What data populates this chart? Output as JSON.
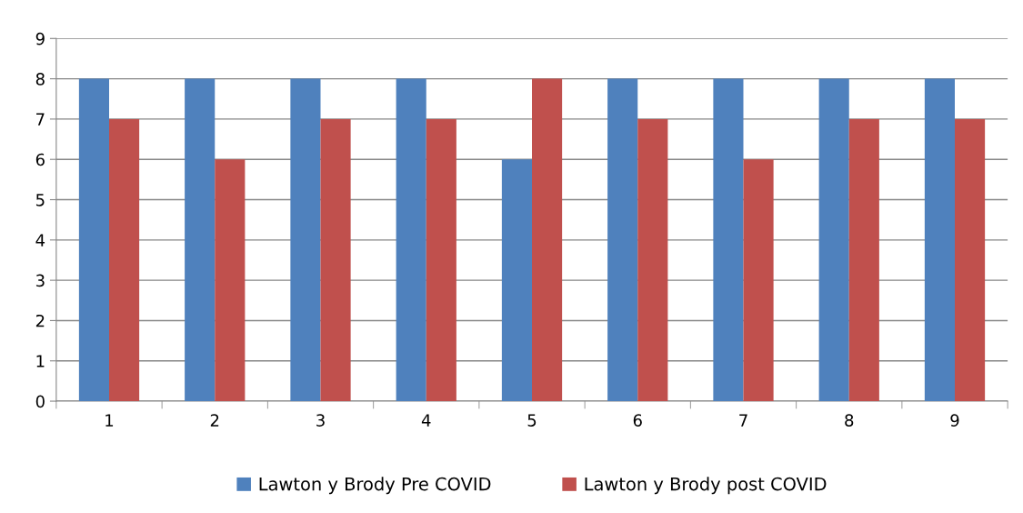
{
  "chart_data": {
    "type": "bar",
    "categories": [
      "1",
      "2",
      "3",
      "4",
      "5",
      "6",
      "7",
      "8",
      "9"
    ],
    "series": [
      {
        "name": "Lawton y Brody Pre COVID",
        "color": "#4f81bd",
        "values": [
          8,
          8,
          8,
          8,
          6,
          8,
          8,
          8,
          8
        ]
      },
      {
        "name": "Lawton y Brody post COVID",
        "color": "#c0504d",
        "values": [
          7,
          6,
          7,
          7,
          8,
          7,
          6,
          7,
          7
        ]
      }
    ],
    "ylim": [
      0,
      9
    ],
    "yticks": [
      0,
      1,
      2,
      3,
      4,
      5,
      6,
      7,
      8,
      9
    ],
    "grid": "y",
    "legend": "bottom"
  }
}
